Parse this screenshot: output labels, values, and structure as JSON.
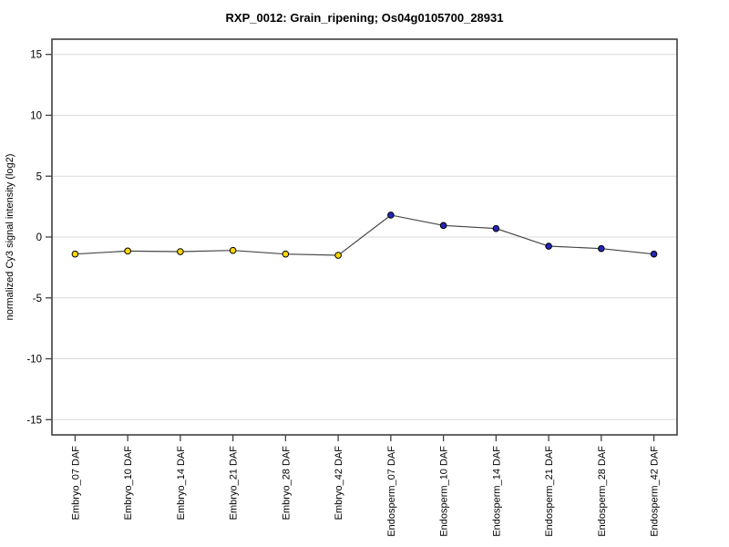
{
  "title": "RXP_0012: Grain_ripening; Os04g0105700_28931",
  "chart_data": {
    "type": "line",
    "title": "RXP_0012: Grain_ripening; Os04g0105700_28931",
    "xlabel": "",
    "ylabel": "normalized Cy3 signal intensity (log2)",
    "ylim": [
      -16.25,
      16.25
    ],
    "yticks": [
      -15,
      -10,
      -5,
      0,
      5,
      10,
      15
    ],
    "grid": "horizontal",
    "grid_color": "#d9d9d9",
    "legend": "none",
    "categories": [
      "Embryo_07 DAF",
      "Embryo_10 DAF",
      "Embryo_14 DAF",
      "Embryo_21 DAF",
      "Embryo_28 DAF",
      "Embryo_42 DAF",
      "Endosperm_07 DAF",
      "Endosperm_10 DAF",
      "Endosperm_14 DAF",
      "Endosperm_21 DAF",
      "Endosperm_28 DAF",
      "Endosperm_42 DAF"
    ],
    "values": [
      -1.4,
      -1.15,
      -1.2,
      -1.1,
      -1.4,
      -1.5,
      1.8,
      0.95,
      0.7,
      -0.75,
      -0.95,
      -1.4
    ],
    "point_groups": [
      {
        "name": "Embryo",
        "color": "#ffd800",
        "count": 6
      },
      {
        "name": "Endosperm",
        "color": "#2525b8",
        "count": 6
      }
    ],
    "line_color": "#474747",
    "marker_outline_color": "#000000",
    "frame_color": "#404040"
  }
}
